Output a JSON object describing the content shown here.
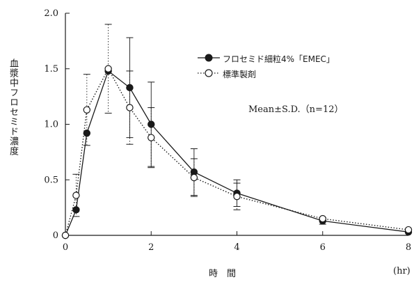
{
  "chart_data": {
    "type": "line",
    "ylabel": "血漿中フロセミド濃度",
    "xlabel": "時　間",
    "x_unit": "(hr)",
    "annotation": "Mean±S.D.（n=12）",
    "xlim": [
      0,
      8
    ],
    "ylim": [
      0,
      2.0
    ],
    "x_ticks": [
      "0",
      "2",
      "4",
      "6",
      "8"
    ],
    "y_ticks": [
      "0",
      "0.5",
      "1.0",
      "1.5",
      "2.0"
    ],
    "legend_position": "top-right",
    "grid": false,
    "series": [
      {
        "name": "フロセミド細粒4%「EMEC」",
        "marker": "filled-circle",
        "line_style": "solid",
        "x": [
          0,
          0.25,
          0.5,
          1,
          1.5,
          2,
          3,
          4,
          6,
          8
        ],
        "y": [
          0,
          0.23,
          0.92,
          1.48,
          1.33,
          1.0,
          0.57,
          0.38,
          0.13,
          0.03
        ],
        "sd": [
          0,
          0.0,
          0.0,
          0.0,
          0.45,
          0.38,
          0.21,
          0.12,
          0.03,
          0.0
        ]
      },
      {
        "name": "標準製剤",
        "marker": "open-circle",
        "line_style": "dotted",
        "x": [
          0,
          0.25,
          0.5,
          1,
          1.5,
          2,
          3,
          4,
          6,
          8
        ],
        "y": [
          0,
          0.36,
          1.13,
          1.5,
          1.15,
          0.88,
          0.52,
          0.35,
          0.15,
          0.05
        ],
        "sd": [
          0,
          0.19,
          0.32,
          0.4,
          0.33,
          0.27,
          0.17,
          0.12,
          0.0,
          0.0
        ]
      }
    ]
  }
}
